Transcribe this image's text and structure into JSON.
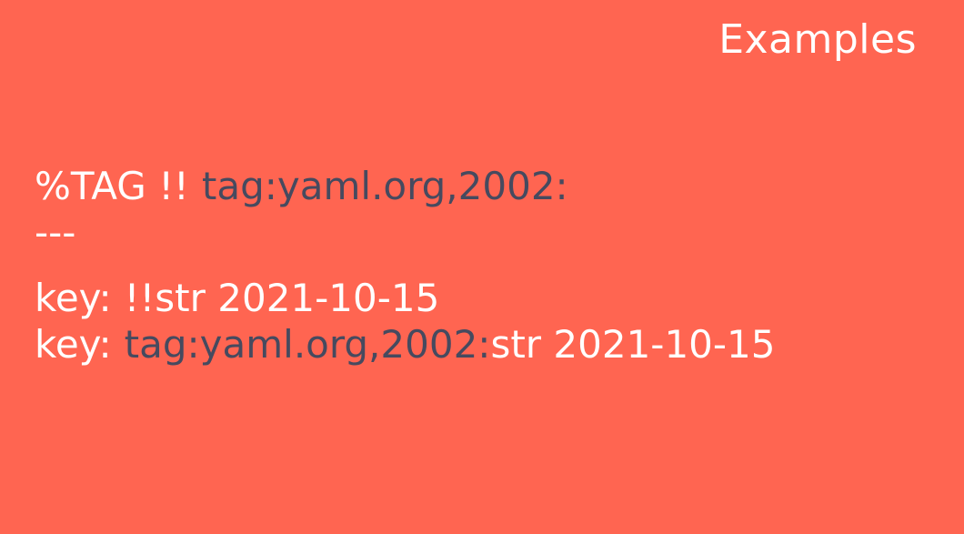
{
  "slide": {
    "title": "Examples"
  },
  "code": {
    "directive": "%TAG !!",
    "tag_uri": "tag:yaml.org,2002:",
    "document_marker": "---",
    "line3": {
      "key": "key:",
      "value": "!!str 2021-10-15"
    },
    "line4": {
      "key": "key:",
      "tag_uri": "tag:yaml.org,2002:",
      "value": "str 2021-10-15"
    }
  },
  "colors": {
    "background": "#ff6551",
    "text": "#ffffff",
    "tag_uri": "#464a5f"
  }
}
